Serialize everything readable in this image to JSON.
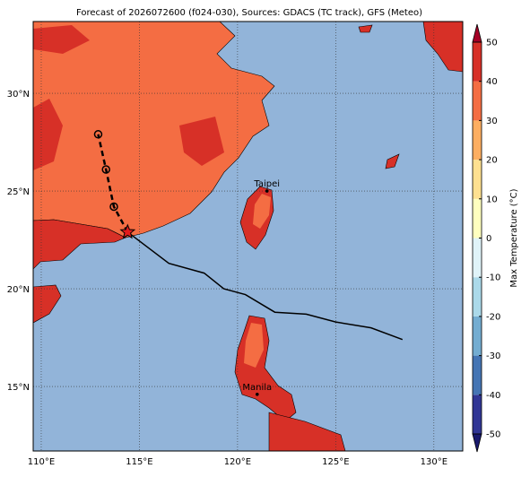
{
  "map": {
    "title": "Forecast of 2026072600 (f024-030), Sources: GDACS (TC track), GFS (Meteo)",
    "xlim": [
      109.59,
      131.47
    ],
    "ylim": [
      11.7,
      33.67
    ],
    "xticks": [
      {
        "value": 110,
        "label": "110°E"
      },
      {
        "value": 115,
        "label": "115°E"
      },
      {
        "value": 120,
        "label": "120°E"
      },
      {
        "value": 125,
        "label": "125°E"
      },
      {
        "value": 130,
        "label": "130°E"
      }
    ],
    "yticks": [
      {
        "value": 15,
        "label": "15°N"
      },
      {
        "value": 20,
        "label": "20°N"
      },
      {
        "value": 25,
        "label": "25°N"
      },
      {
        "value": 30,
        "label": "30°N"
      }
    ],
    "track": {
      "lon": [
        114.4,
        116.5,
        118.3,
        119.3,
        120.4,
        121.9,
        123.5,
        125.0,
        126.8,
        128.4
      ],
      "lat": [
        22.9,
        21.3,
        20.8,
        20.0,
        19.7,
        18.8,
        18.7,
        18.3,
        18.0,
        17.4
      ]
    },
    "forecast": {
      "lon": [
        114.4,
        113.7,
        113.3,
        112.9
      ],
      "lat": [
        22.9,
        24.2,
        26.1,
        27.9
      ]
    },
    "cities": [
      {
        "name": "Taipei",
        "lon": 121.5,
        "lat": 25.0
      },
      {
        "name": "Manila",
        "lon": 121.0,
        "lat": 14.6
      }
    ],
    "colorbar": {
      "label": "Max Temperature (°C)",
      "ticks": [
        -50,
        -40,
        -30,
        -20,
        -10,
        0,
        10,
        20,
        30,
        40,
        50
      ],
      "colors": [
        "#313695",
        "#4575b4",
        "#74add1",
        "#abd9e9",
        "#e0f3f8",
        "#ffffbf",
        "#fee090",
        "#fdae61",
        "#f46d43",
        "#d73027"
      ],
      "under": "#1a1a6e",
      "over": "#a50026"
    }
  }
}
